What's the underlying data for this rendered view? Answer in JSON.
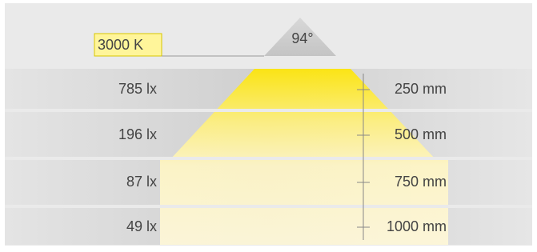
{
  "color_temperature": "3000 K",
  "beam_angle": "94°",
  "rows": [
    {
      "illuminance": "785 lx",
      "distance": "250 mm"
    },
    {
      "illuminance": "196 lx",
      "distance": "500 mm"
    },
    {
      "illuminance": "87 lx",
      "distance": "750 mm"
    },
    {
      "illuminance": "49 lx",
      "distance": "1000 mm"
    }
  ]
}
